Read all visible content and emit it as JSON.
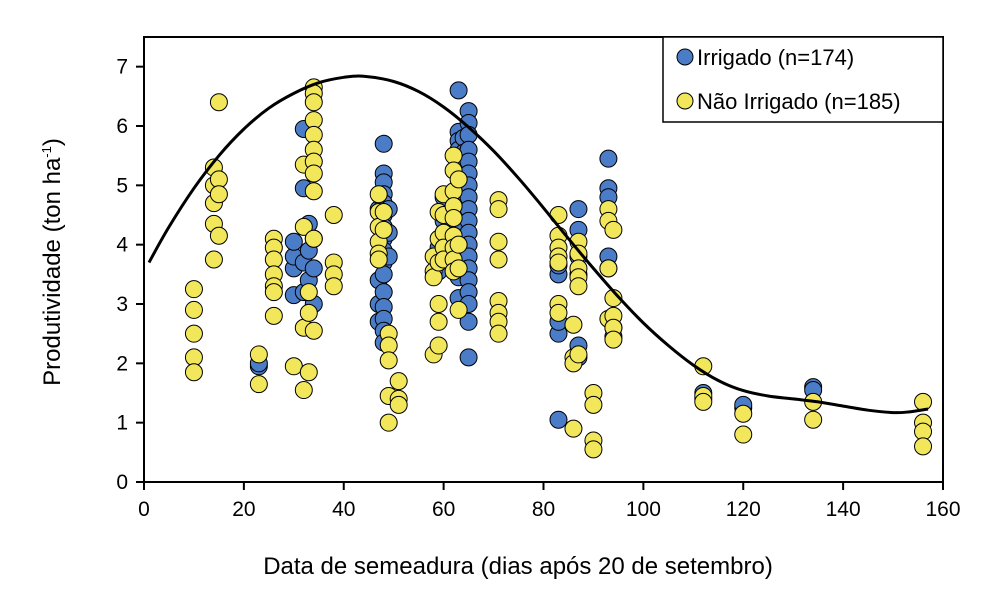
{
  "chart_data": {
    "type": "scatter",
    "title": "",
    "xlabel": "Data de semeadura (dias após 20 de setembro)",
    "ylabel": "Produtividade (ton ha",
    "ylabel_sup": "-1",
    "ylabel_close": ")",
    "xlim": [
      0,
      160
    ],
    "ylim": [
      0,
      7.5
    ],
    "xticks": [
      0,
      20,
      40,
      60,
      80,
      100,
      120,
      140,
      160
    ],
    "yticks": [
      0,
      1,
      2,
      3,
      4,
      5,
      6,
      7
    ],
    "grid": false,
    "legend_position": "top-right",
    "colors": {
      "irrigado": "#4a7cc7",
      "nao_irrigado": "#f2e75a",
      "curve": "#000000"
    },
    "series": [
      {
        "name": "Irrigado (n=174)",
        "color": "#4a7cc7",
        "points": [
          [
            23,
            1.95
          ],
          [
            23,
            2.0
          ],
          [
            30,
            3.15
          ],
          [
            30,
            3.6
          ],
          [
            30,
            3.8
          ],
          [
            30,
            4.05
          ],
          [
            32,
            5.95
          ],
          [
            32,
            4.95
          ],
          [
            32,
            3.7
          ],
          [
            32,
            3.2
          ],
          [
            33,
            3.4
          ],
          [
            33,
            3.9
          ],
          [
            33,
            4.35
          ],
          [
            34,
            3.0
          ],
          [
            34,
            3.6
          ],
          [
            34,
            4.1
          ],
          [
            47,
            3.0
          ],
          [
            47,
            3.4
          ],
          [
            47,
            4.6
          ],
          [
            47,
            2.7
          ],
          [
            48,
            5.7
          ],
          [
            48,
            5.2
          ],
          [
            48,
            5.05
          ],
          [
            48,
            4.85
          ],
          [
            48,
            4.7
          ],
          [
            48,
            4.5
          ],
          [
            48,
            4.3
          ],
          [
            48,
            4.1
          ],
          [
            48,
            3.9
          ],
          [
            48,
            3.7
          ],
          [
            48,
            3.5
          ],
          [
            48,
            3.2
          ],
          [
            48,
            2.95
          ],
          [
            48,
            2.75
          ],
          [
            48,
            2.55
          ],
          [
            48,
            2.35
          ],
          [
            49,
            4.2
          ],
          [
            49,
            3.8
          ],
          [
            49,
            4.6
          ],
          [
            59,
            3.8
          ],
          [
            59,
            3.55
          ],
          [
            59,
            3.95
          ],
          [
            60,
            4.8
          ],
          [
            60,
            4.4
          ],
          [
            60,
            4.1
          ],
          [
            60,
            3.8
          ],
          [
            62,
            4.75
          ],
          [
            62,
            4.55
          ],
          [
            62,
            4.35
          ],
          [
            62,
            4.15
          ],
          [
            62,
            3.95
          ],
          [
            63,
            6.6
          ],
          [
            63,
            5.9
          ],
          [
            63,
            5.75
          ],
          [
            63,
            5.6
          ],
          [
            63,
            5.45
          ],
          [
            63,
            5.3
          ],
          [
            63,
            5.15
          ],
          [
            63,
            4.95
          ],
          [
            63,
            4.8
          ],
          [
            63,
            4.6
          ],
          [
            63,
            4.4
          ],
          [
            63,
            4.2
          ],
          [
            63,
            4.0
          ],
          [
            63,
            3.8
          ],
          [
            63,
            3.6
          ],
          [
            63,
            3.45
          ],
          [
            63,
            3.1
          ],
          [
            64,
            5.8
          ],
          [
            64,
            5.55
          ],
          [
            64,
            5.3
          ],
          [
            64,
            5.05
          ],
          [
            64,
            4.8
          ],
          [
            64,
            4.55
          ],
          [
            64,
            4.3
          ],
          [
            64,
            4.05
          ],
          [
            65,
            6.25
          ],
          [
            65,
            6.05
          ],
          [
            65,
            5.85
          ],
          [
            65,
            5.6
          ],
          [
            65,
            5.4
          ],
          [
            65,
            5.2
          ],
          [
            65,
            5.0
          ],
          [
            65,
            4.8
          ],
          [
            65,
            4.6
          ],
          [
            65,
            4.4
          ],
          [
            65,
            4.2
          ],
          [
            65,
            4.0
          ],
          [
            65,
            3.8
          ],
          [
            65,
            3.6
          ],
          [
            65,
            3.4
          ],
          [
            65,
            3.2
          ],
          [
            65,
            3.0
          ],
          [
            65,
            2.7
          ],
          [
            65,
            2.1
          ],
          [
            83,
            1.05
          ],
          [
            83,
            2.5
          ],
          [
            83,
            2.7
          ],
          [
            83,
            3.5
          ],
          [
            83,
            3.65
          ],
          [
            87,
            4.6
          ],
          [
            87,
            4.25
          ],
          [
            87,
            3.8
          ],
          [
            87,
            3.5
          ],
          [
            87,
            2.3
          ],
          [
            87,
            2.1
          ],
          [
            93,
            5.45
          ],
          [
            93,
            4.95
          ],
          [
            93,
            4.8
          ],
          [
            93,
            3.8
          ],
          [
            93,
            3.6
          ],
          [
            94,
            2.6
          ],
          [
            94,
            2.45
          ],
          [
            112,
            1.5
          ],
          [
            112,
            1.4
          ],
          [
            120,
            1.25
          ],
          [
            120,
            1.3
          ],
          [
            134,
            1.6
          ],
          [
            134,
            1.55
          ]
        ]
      },
      {
        "name": "Não Irrigado (n=185)",
        "color": "#f2e75a",
        "points": [
          [
            10,
            3.25
          ],
          [
            10,
            2.9
          ],
          [
            10,
            2.5
          ],
          [
            10,
            2.1
          ],
          [
            10,
            1.85
          ],
          [
            14,
            5.3
          ],
          [
            14,
            5.0
          ],
          [
            14,
            4.7
          ],
          [
            14,
            4.35
          ],
          [
            14,
            3.75
          ],
          [
            15,
            6.4
          ],
          [
            15,
            5.1
          ],
          [
            15,
            4.85
          ],
          [
            15,
            4.15
          ],
          [
            23,
            2.15
          ],
          [
            23,
            1.65
          ],
          [
            26,
            4.1
          ],
          [
            26,
            3.95
          ],
          [
            26,
            3.75
          ],
          [
            26,
            3.5
          ],
          [
            26,
            3.3
          ],
          [
            26,
            3.2
          ],
          [
            26,
            2.8
          ],
          [
            30,
            1.95
          ],
          [
            32,
            5.35
          ],
          [
            32,
            4.3
          ],
          [
            32,
            2.6
          ],
          [
            32,
            1.55
          ],
          [
            33,
            3.2
          ],
          [
            33,
            2.85
          ],
          [
            33,
            1.85
          ],
          [
            34,
            6.65
          ],
          [
            34,
            6.55
          ],
          [
            34,
            6.4
          ],
          [
            34,
            6.1
          ],
          [
            34,
            5.85
          ],
          [
            34,
            5.6
          ],
          [
            34,
            5.4
          ],
          [
            34,
            5.2
          ],
          [
            34,
            4.9
          ],
          [
            34,
            4.1
          ],
          [
            34,
            2.55
          ],
          [
            38,
            4.5
          ],
          [
            38,
            3.7
          ],
          [
            38,
            3.5
          ],
          [
            38,
            3.3
          ],
          [
            47,
            4.85
          ],
          [
            47,
            4.55
          ],
          [
            47,
            4.3
          ],
          [
            47,
            4.05
          ],
          [
            47,
            3.85
          ],
          [
            47,
            3.75
          ],
          [
            48,
            4.55
          ],
          [
            48,
            4.25
          ],
          [
            49,
            2.5
          ],
          [
            49,
            2.3
          ],
          [
            49,
            2.05
          ],
          [
            49,
            1.45
          ],
          [
            49,
            1.0
          ],
          [
            51,
            1.7
          ],
          [
            51,
            1.4
          ],
          [
            51,
            1.3
          ],
          [
            58,
            3.8
          ],
          [
            58,
            3.55
          ],
          [
            58,
            3.45
          ],
          [
            58,
            2.15
          ],
          [
            59,
            4.55
          ],
          [
            59,
            4.1
          ],
          [
            59,
            3.7
          ],
          [
            59,
            3.0
          ],
          [
            59,
            2.7
          ],
          [
            59,
            2.3
          ],
          [
            60,
            4.85
          ],
          [
            60,
            4.5
          ],
          [
            60,
            4.2
          ],
          [
            60,
            3.95
          ],
          [
            60,
            3.75
          ],
          [
            62,
            5.5
          ],
          [
            62,
            5.25
          ],
          [
            62,
            4.9
          ],
          [
            62,
            4.65
          ],
          [
            62,
            4.45
          ],
          [
            62,
            4.15
          ],
          [
            62,
            3.95
          ],
          [
            62,
            3.75
          ],
          [
            62,
            3.55
          ],
          [
            63,
            5.1
          ],
          [
            63,
            4.0
          ],
          [
            63,
            3.6
          ],
          [
            63,
            2.9
          ],
          [
            71,
            4.75
          ],
          [
            71,
            4.6
          ],
          [
            71,
            4.05
          ],
          [
            71,
            3.75
          ],
          [
            71,
            3.05
          ],
          [
            71,
            2.85
          ],
          [
            71,
            2.7
          ],
          [
            71,
            2.5
          ],
          [
            83,
            4.5
          ],
          [
            83,
            4.15
          ],
          [
            83,
            3.95
          ],
          [
            83,
            3.8
          ],
          [
            83,
            3.7
          ],
          [
            83,
            3.0
          ],
          [
            83,
            2.85
          ],
          [
            86,
            2.65
          ],
          [
            86,
            2.1
          ],
          [
            86,
            2.0
          ],
          [
            86,
            0.9
          ],
          [
            87,
            4.05
          ],
          [
            87,
            3.85
          ],
          [
            87,
            3.6
          ],
          [
            87,
            3.45
          ],
          [
            87,
            3.3
          ],
          [
            87,
            2.15
          ],
          [
            90,
            1.5
          ],
          [
            90,
            1.3
          ],
          [
            90,
            0.7
          ],
          [
            90,
            0.55
          ],
          [
            93,
            4.6
          ],
          [
            93,
            4.4
          ],
          [
            93,
            3.6
          ],
          [
            93,
            2.75
          ],
          [
            94,
            4.25
          ],
          [
            94,
            3.1
          ],
          [
            94,
            2.8
          ],
          [
            94,
            2.6
          ],
          [
            94,
            2.4
          ],
          [
            112,
            1.95
          ],
          [
            112,
            1.45
          ],
          [
            112,
            1.35
          ],
          [
            120,
            1.15
          ],
          [
            120,
            0.8
          ],
          [
            134,
            1.35
          ],
          [
            134,
            1.05
          ],
          [
            156,
            1.35
          ],
          [
            156,
            1.0
          ],
          [
            156,
            0.85
          ],
          [
            156,
            0.6
          ]
        ]
      }
    ],
    "trend_curve": {
      "name": "",
      "x": [
        1,
        5,
        10,
        15,
        20,
        25,
        30,
        35,
        40,
        44,
        50,
        55,
        60,
        65,
        70,
        75,
        80,
        85,
        90,
        95,
        100,
        105,
        110,
        115,
        120,
        125,
        130,
        135,
        140,
        145,
        150,
        153,
        157
      ],
      "y": [
        3.7,
        4.3,
        4.95,
        5.5,
        5.95,
        6.3,
        6.55,
        6.73,
        6.82,
        6.84,
        6.75,
        6.58,
        6.32,
        5.98,
        5.58,
        5.12,
        4.62,
        4.1,
        3.6,
        3.12,
        2.68,
        2.3,
        1.97,
        1.71,
        1.54,
        1.45,
        1.4,
        1.35,
        1.28,
        1.21,
        1.17,
        1.18,
        1.23
      ]
    }
  }
}
